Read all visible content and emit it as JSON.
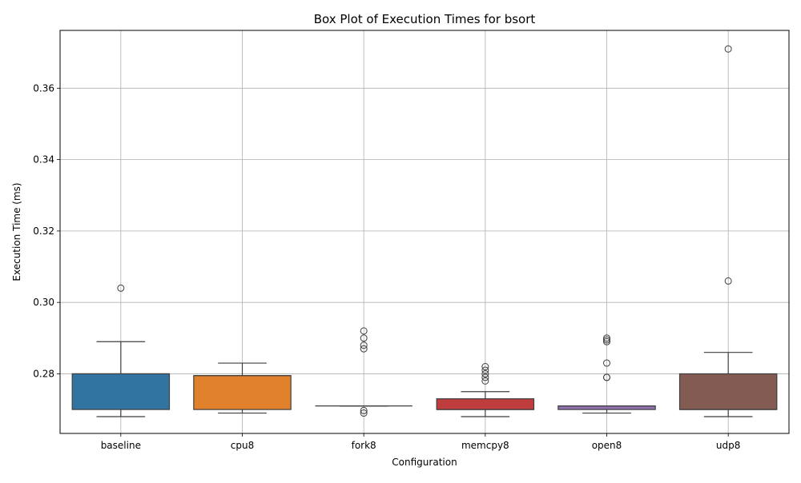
{
  "chart_data": {
    "type": "box",
    "title": "Box Plot of Execution Times for bsort",
    "xlabel": "Configuration",
    "ylabel": "Execution Time (ms)",
    "ylim": [
      0.2633,
      0.3762
    ],
    "yticks": [
      0.28,
      0.3,
      0.32,
      0.34,
      0.36
    ],
    "ytick_labels": [
      "0.28",
      "0.30",
      "0.32",
      "0.34",
      "0.36"
    ],
    "grid": true,
    "categories": [
      "baseline",
      "cpu8",
      "fork8",
      "memcpy8",
      "open8",
      "udp8"
    ],
    "boxes": [
      {
        "name": "baseline",
        "color": "#3274a1",
        "whisker_low": 0.268,
        "q1": 0.27,
        "median": 0.28,
        "q3": 0.28,
        "whisker_high": 0.289,
        "outliers": [
          0.304
        ]
      },
      {
        "name": "cpu8",
        "color": "#e1812c",
        "whisker_low": 0.269,
        "q1": 0.27,
        "median": 0.2795,
        "q3": 0.2795,
        "whisker_high": 0.283,
        "outliers": []
      },
      {
        "name": "fork8",
        "color": "#3a923a",
        "whisker_low": 0.271,
        "q1": 0.271,
        "median": 0.271,
        "q3": 0.271,
        "whisker_high": 0.271,
        "outliers": [
          0.269,
          0.2697,
          0.287,
          0.288,
          0.29,
          0.292
        ]
      },
      {
        "name": "memcpy8",
        "color": "#c03d3e",
        "whisker_low": 0.268,
        "q1": 0.27,
        "median": 0.27,
        "q3": 0.273,
        "whisker_high": 0.275,
        "outliers": [
          0.278,
          0.279,
          0.28,
          0.281,
          0.282
        ]
      },
      {
        "name": "open8",
        "color": "#9372b2",
        "whisker_low": 0.269,
        "q1": 0.27,
        "median": 0.271,
        "q3": 0.271,
        "whisker_high": 0.271,
        "outliers": [
          0.279,
          0.279,
          0.283,
          0.289,
          0.2895,
          0.29
        ]
      },
      {
        "name": "udp8",
        "color": "#845b53",
        "whisker_low": 0.268,
        "q1": 0.27,
        "median": 0.27,
        "q3": 0.28,
        "whisker_high": 0.286,
        "outliers": [
          0.306,
          0.371
        ]
      }
    ]
  }
}
